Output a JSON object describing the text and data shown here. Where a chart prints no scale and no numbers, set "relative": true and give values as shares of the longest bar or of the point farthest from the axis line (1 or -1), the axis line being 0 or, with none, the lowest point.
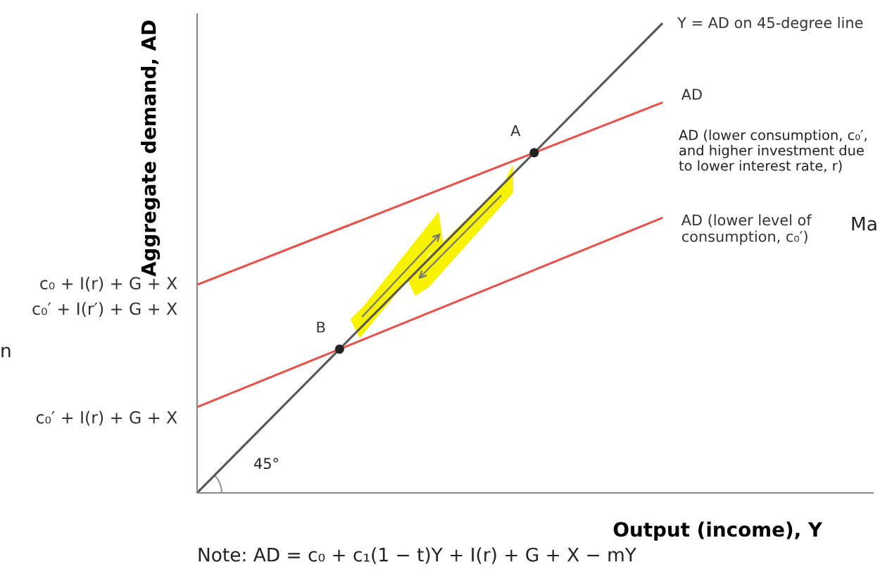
{
  "chart_data": {
    "type": "line",
    "relative": true,
    "xlabel": "Output (income), Y",
    "ylabel": "Aggregate demand, AD",
    "categories": [
      null,
      null
    ],
    "series": [
      {
        "name": "Y = AD on 45-degree line",
        "color": "#555555",
        "values": [
          0,
          1
        ]
      },
      {
        "name": "AD",
        "color": "#e8504a",
        "values": [
          0.444,
          0.832
        ]
      },
      {
        "name": "AD (lower level of consumption, c₀′)",
        "color": "#e8504a",
        "values": [
          0.183,
          0.586
        ]
      }
    ],
    "annotations": [
      "Note: AD = c₀ + c₁(1 − t)Y + I(r) + G + X − mY",
      "AD (lower consumption, c₀′, and higher investment due to lower interest rate, r)",
      "45°",
      "Ma",
      "n",
      "A",
      "B",
      "c₀ + I(r) + G + X",
      "c₀′ + I(r′) + G + X",
      "c₀′ + I(r) + G + X"
    ],
    "marker": "none",
    "line_style": "solid"
  }
}
